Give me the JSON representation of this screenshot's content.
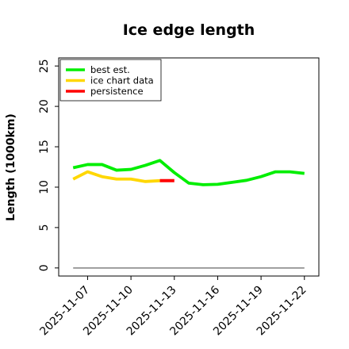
{
  "chart_data": {
    "type": "line",
    "title": "Ice edge length",
    "xlabel": "",
    "ylabel": "Length (1000km)",
    "ylim": [
      -1,
      26
    ],
    "yticks": [
      0,
      5,
      10,
      15,
      20,
      25
    ],
    "xlim": [
      "2025-11-05",
      "2025-11-23"
    ],
    "xticks": [
      "2025-11-07",
      "2025-11-10",
      "2025-11-13",
      "2025-11-16",
      "2025-11-19",
      "2025-11-22"
    ],
    "grid": false,
    "legend_position": "top-left",
    "series": [
      {
        "name": "best est.",
        "color": "#00ee00",
        "x": [
          "2025-11-06",
          "2025-11-07",
          "2025-11-08",
          "2025-11-09",
          "2025-11-10",
          "2025-11-11",
          "2025-11-12",
          "2025-11-13",
          "2025-11-14",
          "2025-11-15",
          "2025-11-16",
          "2025-11-17",
          "2025-11-18",
          "2025-11-19",
          "2025-11-20",
          "2025-11-21",
          "2025-11-22"
        ],
        "values": [
          12.4,
          12.8,
          12.8,
          12.1,
          12.2,
          12.7,
          13.3,
          11.8,
          10.5,
          10.3,
          10.35,
          10.6,
          10.85,
          11.3,
          11.9,
          11.9,
          11.7
        ]
      },
      {
        "name": "ice chart data",
        "color": "#ffd700",
        "x": [
          "2025-11-06",
          "2025-11-07",
          "2025-11-08",
          "2025-11-09",
          "2025-11-10",
          "2025-11-11",
          "2025-11-12"
        ],
        "values": [
          11.0,
          11.9,
          11.3,
          11.0,
          11.0,
          10.7,
          10.8
        ]
      },
      {
        "name": "persistence",
        "color": "#ff0000",
        "x": [
          "2025-11-12",
          "2025-11-13"
        ],
        "values": [
          10.8,
          10.8
        ]
      }
    ],
    "reference_line": {
      "color": "#808080",
      "x": [
        "2025-11-06",
        "2025-11-22"
      ],
      "y": 0
    }
  }
}
